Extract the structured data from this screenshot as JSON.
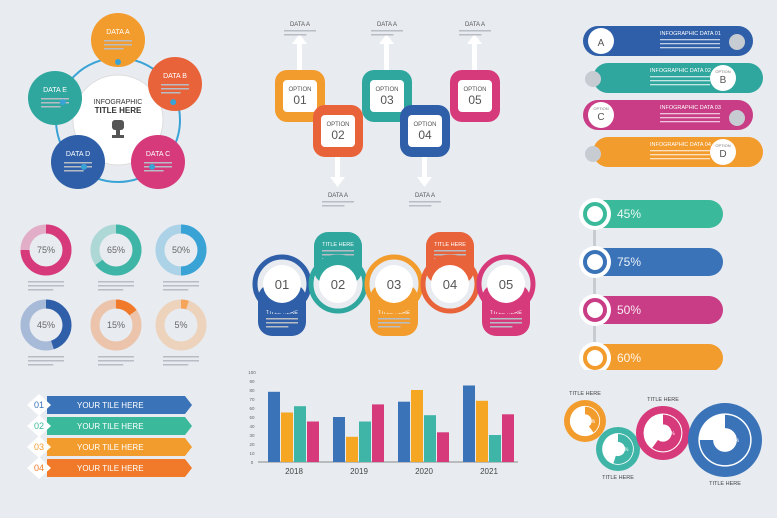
{
  "colors": {
    "blue": "#3a73b8",
    "orange": "#f39c2e",
    "red": "#e94d5a",
    "teal": "#3eb5a6",
    "pink": "#d63a7a",
    "magenta": "#c93c86",
    "cyan": "#3aa3d6",
    "green": "#3aba9a",
    "purple": "#8a4fb7",
    "bg": "#e8ebf0"
  },
  "cycle": {
    "center_title": "INFOGRAPHIC TITLE HERE",
    "items": [
      {
        "label": "DATA A",
        "color": "#f39c2e"
      },
      {
        "label": "DATA B",
        "color": "#e9633a"
      },
      {
        "label": "DATA C",
        "color": "#d63a7a"
      },
      {
        "label": "DATA D",
        "color": "#2f5fa8"
      },
      {
        "label": "DATA E",
        "color": "#2fa79e"
      }
    ]
  },
  "options": {
    "items": [
      {
        "label": "OPTION",
        "num": "01",
        "data": "DATA A",
        "color": "#f39c2e"
      },
      {
        "label": "OPTION",
        "num": "02",
        "data": "DATA A",
        "color": "#e9633a"
      },
      {
        "label": "OPTION",
        "num": "03",
        "data": "DATA A",
        "color": "#2fa79e"
      },
      {
        "label": "OPTION",
        "num": "04",
        "data": "DATA A",
        "color": "#2f5fa8"
      },
      {
        "label": "OPTION",
        "num": "05",
        "data": "DATA A",
        "color": "#d63a7a"
      }
    ]
  },
  "abcd": {
    "items": [
      {
        "letter": "A",
        "title": "INFOGRAPHIC DATA 01",
        "color": "#2f5fa8"
      },
      {
        "letter": "B",
        "title": "INFOGRAPHIC DATA 02",
        "color": "#2fa79e",
        "tag": "OPTION"
      },
      {
        "letter": "C",
        "title": "INFOGRAPHIC DATA 03",
        "color": "#c93c86",
        "tag": "OPTION"
      },
      {
        "letter": "D",
        "title": "INFOGRAPHIC DATA 04",
        "color": "#f39c2e",
        "tag": "OPTION"
      }
    ]
  },
  "donuts": {
    "items": [
      {
        "label": "75%",
        "value": 75,
        "color": "#d63a7a"
      },
      {
        "label": "65%",
        "value": 65,
        "color": "#3eb5a6"
      },
      {
        "label": "50%",
        "value": 50,
        "color": "#3aa3d6"
      },
      {
        "label": "45%",
        "value": 45,
        "color": "#2f5fa8"
      },
      {
        "label": "15%",
        "value": 15,
        "color": "#f07a2a"
      },
      {
        "label": "5%",
        "value": 5,
        "color": "#f5a55a"
      }
    ]
  },
  "steps": {
    "items": [
      {
        "num": "01",
        "title": "TITLE HERE",
        "color": "#2f5fa8",
        "dir": "down"
      },
      {
        "num": "02",
        "title": "TITLE HERE",
        "color": "#2fa79e",
        "dir": "up"
      },
      {
        "num": "03",
        "title": "TITLE HERE",
        "color": "#f39c2e",
        "dir": "down"
      },
      {
        "num": "04",
        "title": "TITLE HERE",
        "color": "#e9633a",
        "dir": "up"
      },
      {
        "num": "05",
        "title": "TITLE HERE",
        "color": "#d63a7a",
        "dir": "down"
      }
    ]
  },
  "progress": {
    "items": [
      {
        "label": "45%",
        "value": 45,
        "color": "#3aba9a"
      },
      {
        "label": "75%",
        "value": 75,
        "color": "#3a73b8"
      },
      {
        "label": "50%",
        "value": 50,
        "color": "#c93c86"
      },
      {
        "label": "60%",
        "value": 60,
        "color": "#f39c2e"
      }
    ]
  },
  "ribbons": {
    "items": [
      {
        "num": "01",
        "label": "YOUR TILE HERE",
        "color": "#3a73b8"
      },
      {
        "num": "02",
        "label": "YOUR TILE HERE",
        "color": "#3aba9a"
      },
      {
        "num": "03",
        "label": "YOUR TILE HERE",
        "color": "#f39c2e"
      },
      {
        "num": "04",
        "label": "YOUR TILE HERE",
        "color": "#f07a2a"
      }
    ]
  },
  "chart_data": {
    "type": "bar",
    "categories": [
      "2018",
      "2019",
      "2020",
      "2021"
    ],
    "yticks": [
      "0",
      "10",
      "20",
      "30",
      "40",
      "50",
      "60",
      "70",
      "80",
      "90",
      "100"
    ],
    "ylim": [
      0,
      100
    ],
    "series": [
      {
        "color": "#3a73b8",
        "values": [
          78,
          50,
          67,
          85
        ]
      },
      {
        "color": "#f5a623",
        "values": [
          55,
          28,
          80,
          68
        ]
      },
      {
        "color": "#3eb5a6",
        "values": [
          62,
          45,
          52,
          30
        ]
      },
      {
        "color": "#d63a7a",
        "values": [
          45,
          64,
          33,
          53
        ]
      }
    ]
  },
  "pies": {
    "items": [
      {
        "title": "TITLE HERE",
        "label": "40%",
        "value": 40,
        "color": "#f39c2e"
      },
      {
        "title": "TITLE HERE",
        "label": "55%",
        "value": 55,
        "color": "#3eb5a6"
      },
      {
        "title": "TITLE HERE",
        "label": "60%",
        "value": 60,
        "color": "#d63a7a"
      },
      {
        "title": "TITLE HERE",
        "label": "75%",
        "value": 75,
        "color": "#3a73b8"
      }
    ]
  }
}
